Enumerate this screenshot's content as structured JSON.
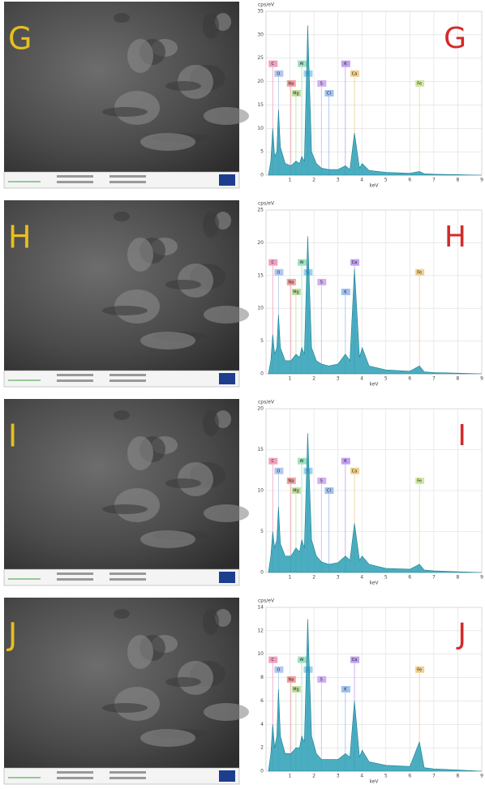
{
  "chart_data": [
    {
      "type": "area",
      "title": "G",
      "x_label": "keV",
      "y_label": "cps/eV",
      "color": "#2b9fb5",
      "xlim": [
        0,
        9
      ],
      "xticks": [
        1,
        2,
        3,
        4,
        5,
        6,
        7,
        8,
        9
      ],
      "ylim": [
        0,
        35
      ],
      "yticks": [
        0,
        5,
        10,
        15,
        20,
        25,
        30,
        35
      ],
      "grid": true,
      "x": [
        0.1,
        0.2,
        0.28,
        0.36,
        0.45,
        0.52,
        0.6,
        0.8,
        1.04,
        1.25,
        1.4,
        1.49,
        1.6,
        1.74,
        1.9,
        2.1,
        2.31,
        2.62,
        3.0,
        3.31,
        3.5,
        3.69,
        3.9,
        4.01,
        4.3,
        5.0,
        6.0,
        6.4,
        6.6,
        7.0,
        8.0,
        9.0
      ],
      "values": [
        0,
        3,
        10,
        4,
        5,
        14,
        6,
        2.5,
        2,
        3,
        2.5,
        4,
        3,
        32,
        5,
        2.5,
        1.5,
        1.2,
        1.2,
        2,
        1.2,
        9,
        1.5,
        2.5,
        1,
        0.6,
        0.4,
        0.8,
        0.3,
        0.2,
        0.1,
        0
      ],
      "elements": [
        {
          "name": "C",
          "x": 0.28
        },
        {
          "name": "O",
          "x": 0.52
        },
        {
          "name": "Na",
          "x": 1.04
        },
        {
          "name": "Mg",
          "x": 1.25
        },
        {
          "name": "Al",
          "x": 1.49
        },
        {
          "name": "Si",
          "x": 1.74
        },
        {
          "name": "S",
          "x": 2.31
        },
        {
          "name": "Cl",
          "x": 2.62
        },
        {
          "name": "K",
          "x": 3.31
        },
        {
          "name": "Ca",
          "x": 3.69
        },
        {
          "name": "Fe",
          "x": 6.4
        }
      ]
    },
    {
      "type": "area",
      "title": "H",
      "x_label": "keV",
      "y_label": "cps/eV",
      "color": "#2b9fb5",
      "xlim": [
        0,
        9
      ],
      "xticks": [
        1,
        2,
        3,
        4,
        5,
        6,
        7,
        8,
        9
      ],
      "ylim": [
        0,
        25
      ],
      "yticks": [
        0,
        5,
        10,
        15,
        20,
        25
      ],
      "grid": true,
      "x": [
        0.1,
        0.2,
        0.28,
        0.36,
        0.45,
        0.52,
        0.6,
        0.8,
        1.04,
        1.25,
        1.4,
        1.49,
        1.6,
        1.74,
        1.9,
        2.1,
        2.31,
        2.62,
        3.0,
        3.31,
        3.5,
        3.69,
        3.9,
        4.01,
        4.3,
        5.0,
        6.0,
        6.4,
        6.6,
        7.0,
        8.0,
        9.0
      ],
      "values": [
        0,
        2,
        6,
        3,
        4,
        9,
        4,
        2,
        2,
        3,
        2.5,
        4,
        3,
        21,
        4,
        2,
        1.5,
        1.2,
        1.5,
        3,
        2,
        16,
        2.5,
        4,
        1.2,
        0.6,
        0.4,
        1.2,
        0.3,
        0.2,
        0.1,
        0
      ],
      "elements": [
        {
          "name": "C",
          "x": 0.28
        },
        {
          "name": "O",
          "x": 0.52
        },
        {
          "name": "Na",
          "x": 1.04
        },
        {
          "name": "Mg",
          "x": 1.25
        },
        {
          "name": "Al",
          "x": 1.49
        },
        {
          "name": "Si",
          "x": 1.74
        },
        {
          "name": "S",
          "x": 2.31
        },
        {
          "name": "K",
          "x": 3.31
        },
        {
          "name": "Ca",
          "x": 3.69
        },
        {
          "name": "Fe",
          "x": 6.4
        }
      ]
    },
    {
      "type": "area",
      "title": "I",
      "x_label": "keV",
      "y_label": "cps/eV",
      "color": "#2b9fb5",
      "xlim": [
        0,
        9
      ],
      "xticks": [
        1,
        2,
        3,
        4,
        5,
        6,
        7,
        8,
        9
      ],
      "ylim": [
        0,
        20
      ],
      "yticks": [
        0,
        5,
        10,
        15,
        20
      ],
      "grid": true,
      "x": [
        0.1,
        0.2,
        0.28,
        0.36,
        0.45,
        0.52,
        0.6,
        0.8,
        1.04,
        1.25,
        1.4,
        1.49,
        1.6,
        1.74,
        1.9,
        2.1,
        2.31,
        2.62,
        3.0,
        3.31,
        3.5,
        3.69,
        3.9,
        4.01,
        4.3,
        5.0,
        6.0,
        6.4,
        6.6,
        7.0,
        8.0,
        9.0
      ],
      "values": [
        0,
        2,
        5,
        3,
        4,
        8,
        3.5,
        2,
        2,
        3,
        2.5,
        4,
        3,
        17,
        4,
        2,
        1.3,
        1,
        1.2,
        2,
        1.5,
        6,
        1.5,
        2,
        1,
        0.5,
        0.4,
        1,
        0.3,
        0.2,
        0.1,
        0
      ],
      "elements": [
        {
          "name": "C",
          "x": 0.28
        },
        {
          "name": "O",
          "x": 0.52
        },
        {
          "name": "Na",
          "x": 1.04
        },
        {
          "name": "Mg",
          "x": 1.25
        },
        {
          "name": "Al",
          "x": 1.49
        },
        {
          "name": "Si",
          "x": 1.74
        },
        {
          "name": "S",
          "x": 2.31
        },
        {
          "name": "Cl",
          "x": 2.62
        },
        {
          "name": "K",
          "x": 3.31
        },
        {
          "name": "Ca",
          "x": 3.69
        },
        {
          "name": "Fe",
          "x": 6.4
        }
      ]
    },
    {
      "type": "area",
      "title": "J",
      "x_label": "keV",
      "y_label": "cps/eV",
      "color": "#2b9fb5",
      "xlim": [
        0,
        9
      ],
      "xticks": [
        1,
        2,
        3,
        4,
        5,
        6,
        7,
        8,
        9
      ],
      "ylim": [
        0,
        14
      ],
      "yticks": [
        0,
        2,
        4,
        6,
        8,
        10,
        12,
        14
      ],
      "grid": true,
      "x": [
        0.1,
        0.2,
        0.28,
        0.36,
        0.45,
        0.52,
        0.6,
        0.8,
        1.04,
        1.25,
        1.4,
        1.49,
        1.6,
        1.74,
        1.9,
        2.1,
        2.31,
        2.62,
        3.0,
        3.31,
        3.5,
        3.69,
        3.9,
        4.01,
        4.3,
        5.0,
        6.0,
        6.4,
        6.6,
        7.0,
        8.0,
        9.0
      ],
      "values": [
        0,
        1.5,
        4,
        2,
        3,
        7,
        3,
        1.5,
        1.5,
        2,
        2,
        3,
        2.5,
        13,
        3,
        1.5,
        1,
        1,
        1,
        1.5,
        1.2,
        6,
        1.2,
        1.8,
        0.8,
        0.5,
        0.4,
        2.5,
        0.3,
        0.2,
        0.1,
        0
      ],
      "elements": [
        {
          "name": "C",
          "x": 0.28
        },
        {
          "name": "O",
          "x": 0.52
        },
        {
          "name": "Na",
          "x": 1.04
        },
        {
          "name": "Mg",
          "x": 1.25
        },
        {
          "name": "Al",
          "x": 1.49
        },
        {
          "name": "Si",
          "x": 1.74
        },
        {
          "name": "S",
          "x": 2.31
        },
        {
          "name": "K",
          "x": 3.31
        },
        {
          "name": "Ca",
          "x": 3.69
        },
        {
          "name": "Fe",
          "x": 6.4
        }
      ]
    }
  ]
}
